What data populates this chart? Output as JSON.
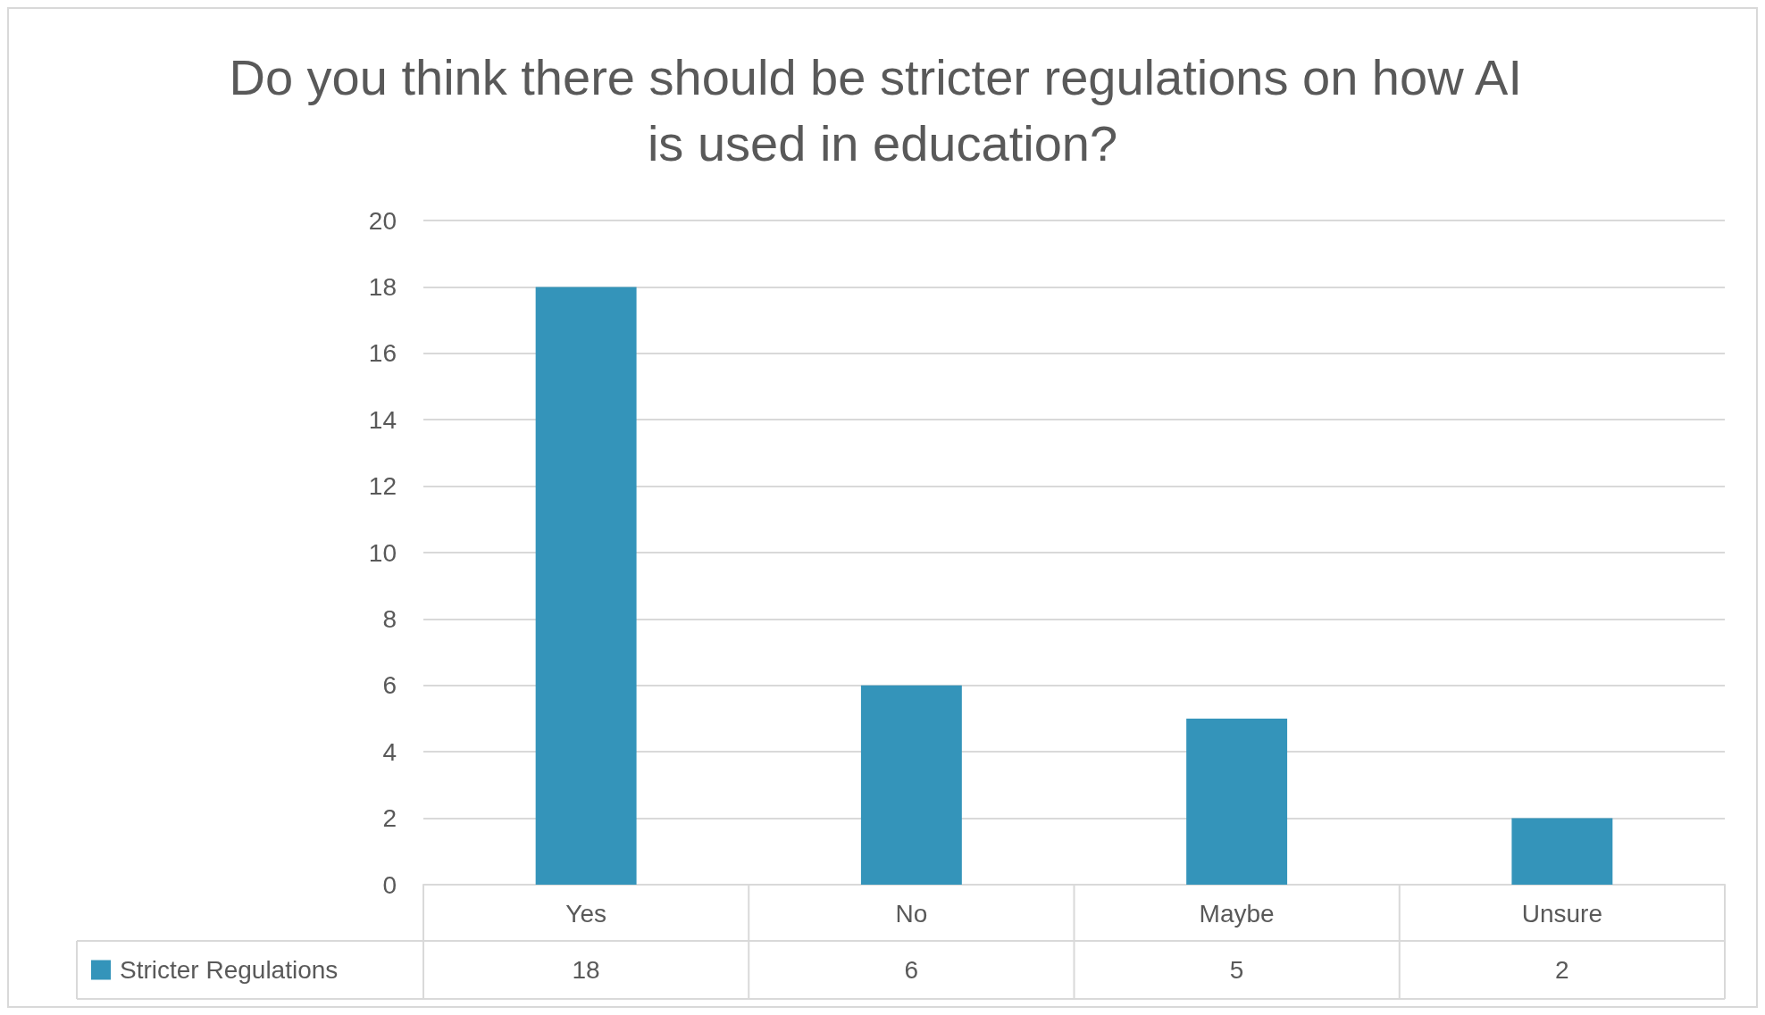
{
  "chart_data": {
    "type": "bar",
    "title": "Do you think there should be stricter regulations on how AI is used in education?",
    "categories": [
      "Yes",
      "No",
      "Maybe",
      "Unsure"
    ],
    "series": [
      {
        "name": "Stricter Regulations",
        "color": "#3494ba",
        "values": [
          18,
          6,
          5,
          2
        ]
      }
    ],
    "ylim": [
      0,
      20
    ],
    "yticks": [
      0,
      2,
      4,
      6,
      8,
      10,
      12,
      14,
      16,
      18,
      20
    ],
    "grid": "y",
    "legend": "bottom",
    "data_labels": true
  }
}
